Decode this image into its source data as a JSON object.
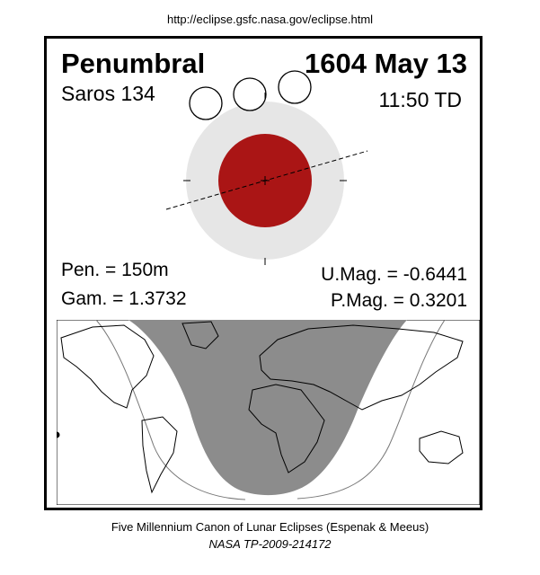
{
  "header": {
    "url": "http://eclipse.gsfc.nasa.gov/eclipse.html"
  },
  "eclipse": {
    "type": "Penumbral",
    "date": "1604 May 13",
    "saros": "Saros 134",
    "time": "11:50 TD",
    "pen_duration": "Pen. = 150m",
    "gamma": "Gam. = 1.3732",
    "umbral_mag": "U.Mag. = -0.6441",
    "penumbral_mag": "P.Mag. = 0.3201"
  },
  "colors": {
    "umbra": "#aa1515",
    "penumbra": "#e6e6e6",
    "night_shade": "#8c8c8c",
    "frame": "#000000"
  },
  "footer": {
    "line1": "Five Millennium Canon of Lunar Eclipses (Espenak & Meeus)",
    "line2": "NASA TP-2009-214172"
  }
}
